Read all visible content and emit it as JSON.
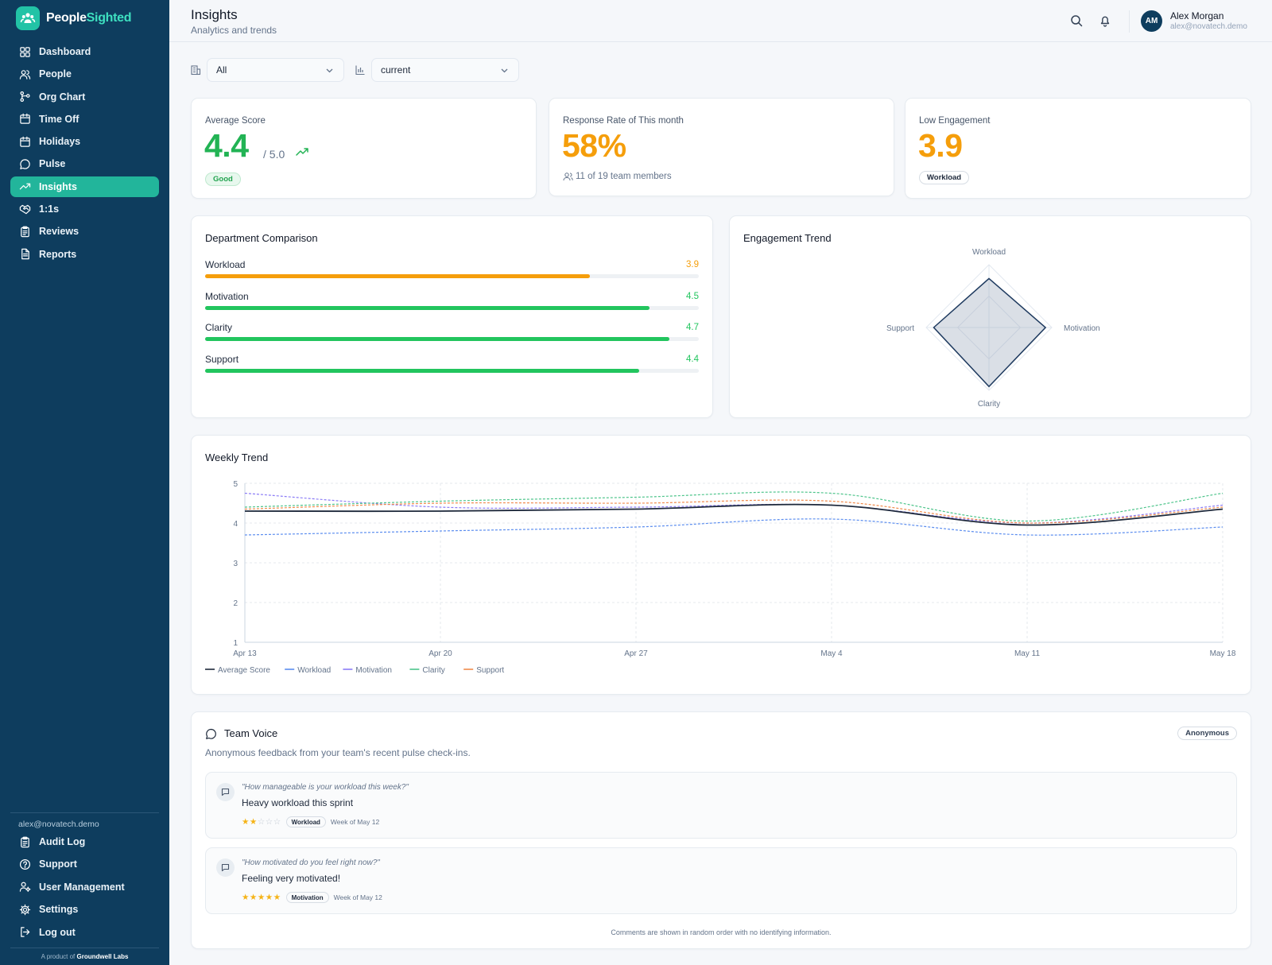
{
  "app": {
    "name_part1": "People",
    "name_part2": "Sighted"
  },
  "nav": [
    {
      "label": "Dashboard",
      "icon": "dashboard-icon"
    },
    {
      "label": "People",
      "icon": "people-icon"
    },
    {
      "label": "Org Chart",
      "icon": "org-chart-icon"
    },
    {
      "label": "Time Off",
      "icon": "calendar-icon"
    },
    {
      "label": "Holidays",
      "icon": "calendar-icon"
    },
    {
      "label": "Pulse",
      "icon": "chat-bubble-icon"
    },
    {
      "label": "Insights",
      "icon": "trending-up-icon",
      "active": true
    },
    {
      "label": "1:1s",
      "icon": "handshake-icon"
    },
    {
      "label": "Reviews",
      "icon": "clipboard-icon"
    },
    {
      "label": "Reports",
      "icon": "document-icon"
    }
  ],
  "sidebar_bottom": {
    "email": "alex@novatech.demo",
    "items": [
      {
        "label": "Audit Log",
        "icon": "clipboard-icon"
      },
      {
        "label": "Support",
        "icon": "help-circle-icon"
      },
      {
        "label": "User Management",
        "icon": "user-gear-icon"
      },
      {
        "label": "Settings",
        "icon": "gear-icon"
      },
      {
        "label": "Log out",
        "icon": "logout-icon"
      }
    ],
    "footer_prefix": "A product of",
    "footer_brand": "Groundwell Labs"
  },
  "header": {
    "title": "Insights",
    "subtitle": "Analytics and trends",
    "user": {
      "initials": "AM",
      "name": "Alex Morgan",
      "email": "alex@novatech.demo"
    }
  },
  "filters": {
    "department": "All",
    "period": "current"
  },
  "kpis": {
    "average": {
      "label": "Average Score",
      "value": "4.4",
      "of": "/ 5.0",
      "badge": "Good",
      "color": "#22b354"
    },
    "response": {
      "label": "Response Rate of This month",
      "value": "58%",
      "sub": "11 of 19 team members",
      "color": "#f59e0b"
    },
    "low": {
      "label": "Low Engagement",
      "value": "3.9",
      "badge": "Workload",
      "color": "#f59e0b"
    }
  },
  "department": {
    "title": "Department Comparison",
    "max": 5,
    "rows": [
      {
        "label": "Workload",
        "value": 3.9,
        "display": "3.9",
        "color": "#f59e0b"
      },
      {
        "label": "Motivation",
        "value": 4.5,
        "display": "4.5",
        "color": "#22c55e"
      },
      {
        "label": "Clarity",
        "value": 4.7,
        "display": "4.7",
        "color": "#22c55e"
      },
      {
        "label": "Support",
        "value": 4.4,
        "display": "4.4",
        "color": "#22c55e"
      }
    ]
  },
  "engagement": {
    "title": "Engagement Trend",
    "radar": {
      "axes": [
        "Workload",
        "Motivation",
        "Clarity",
        "Support"
      ],
      "values": [
        3.9,
        4.5,
        4.7,
        4.4
      ],
      "max": 5
    }
  },
  "weekly": {
    "title": "Weekly Trend",
    "chart_data": {
      "type": "line",
      "x": [
        "Apr 13",
        "Apr 20",
        "Apr 27",
        "May 4",
        "May 11",
        "May 18"
      ],
      "ylim": [
        1,
        5
      ],
      "yticks": [
        "1",
        "2",
        "3",
        "4",
        "5"
      ],
      "grid": true,
      "legend": "bottom-left",
      "series": [
        {
          "name": "Average Score",
          "color": "#1e293b",
          "dashed": false,
          "values": [
            4.3,
            4.3,
            4.35,
            4.45,
            3.95,
            4.35
          ]
        },
        {
          "name": "Workload",
          "color": "#5b8def",
          "dashed": true,
          "values": [
            3.7,
            3.8,
            3.9,
            4.1,
            3.7,
            3.9
          ]
        },
        {
          "name": "Motivation",
          "color": "#8b7cf6",
          "dashed": true,
          "values": [
            4.75,
            4.4,
            4.4,
            4.45,
            4.0,
            4.45
          ]
        },
        {
          "name": "Clarity",
          "color": "#4cc48a",
          "dashed": true,
          "values": [
            4.4,
            4.55,
            4.65,
            4.75,
            4.05,
            4.75
          ]
        },
        {
          "name": "Support",
          "color": "#f08a4b",
          "dashed": true,
          "values": [
            4.35,
            4.5,
            4.5,
            4.55,
            4.0,
            4.4
          ]
        }
      ]
    }
  },
  "voice": {
    "title": "Team Voice",
    "subtitle": "Anonymous feedback from your team's recent pulse check-ins.",
    "badge": "Anonymous",
    "items": [
      {
        "question": "\"How manageable is your workload this week?\"",
        "answer": "Heavy workload this sprint",
        "rating": 2,
        "tag": "Workload",
        "week": "Week of May 12"
      },
      {
        "question": "\"How motivated do you feel right now?\"",
        "answer": "Feeling very motivated!",
        "rating": 5,
        "tag": "Motivation",
        "week": "Week of May 12"
      }
    ],
    "footnote": "Comments are shown in random order with no identifying information."
  }
}
